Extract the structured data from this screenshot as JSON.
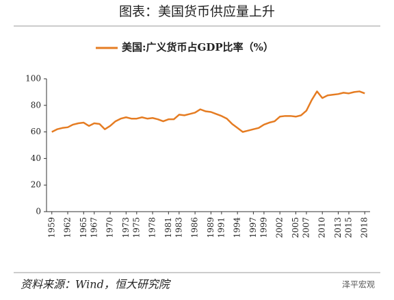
{
  "chart_data": {
    "type": "line",
    "title": "图表：美国货币供应量上升",
    "source": "资料来源：Wind，恒大研究院",
    "watermark": "泽平宏观",
    "x": [
      1959,
      1960,
      1961,
      1962,
      1963,
      1964,
      1965,
      1966,
      1967,
      1968,
      1969,
      1970,
      1971,
      1972,
      1973,
      1974,
      1975,
      1976,
      1977,
      1978,
      1979,
      1980,
      1981,
      1982,
      1983,
      1984,
      1985,
      1986,
      1987,
      1988,
      1989,
      1990,
      1991,
      1992,
      1993,
      1994,
      1995,
      1996,
      1997,
      1998,
      1999,
      2000,
      2001,
      2002,
      2003,
      2004,
      2005,
      2006,
      2007,
      2008,
      2009,
      2010,
      2011,
      2012,
      2013,
      2014,
      2015,
      2016,
      2017,
      2018
    ],
    "series": [
      {
        "name": "美国:广义货币占GDP比率（%）",
        "color": "#e57c22",
        "values": [
          60,
          62,
          63,
          63.5,
          65.5,
          66.5,
          67,
          64.5,
          66.5,
          66,
          62,
          64.5,
          68,
          70,
          71,
          70,
          70,
          71,
          70,
          70.5,
          69.5,
          68,
          69.5,
          69.5,
          73,
          72.5,
          73.5,
          74.5,
          77,
          75.5,
          75,
          73.5,
          72,
          70,
          66,
          63,
          60,
          61,
          62,
          63,
          65.5,
          67,
          68,
          71.5,
          72,
          72,
          71.5,
          72.5,
          76,
          84,
          90.5,
          85.5,
          87.5,
          88,
          88.5,
          89.5,
          89,
          90,
          90.5,
          89
        ]
      }
    ],
    "xlim": [
      1958,
      2019
    ],
    "xticks": [
      1959,
      1962,
      1965,
      1967,
      1970,
      1973,
      1975,
      1978,
      1981,
      1983,
      1986,
      1989,
      1991,
      1994,
      1997,
      1999,
      2002,
      2005,
      2007,
      2010,
      2013,
      2015,
      2018
    ],
    "ylim": [
      0,
      100
    ],
    "yticks": [
      0,
      20,
      40,
      60,
      80,
      100
    ]
  }
}
